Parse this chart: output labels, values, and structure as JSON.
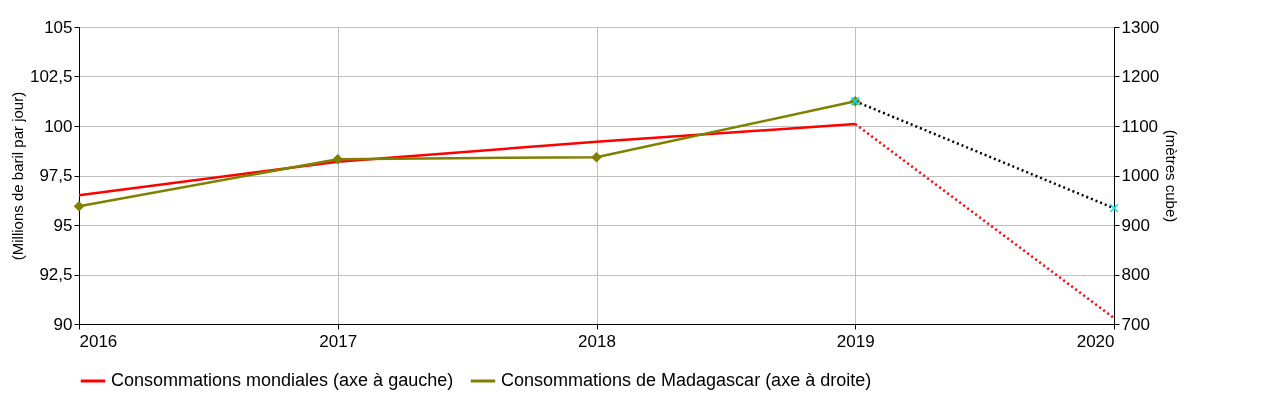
{
  "chart_data": {
    "type": "line",
    "xlabel": null,
    "ylabel": "(Millions de baril par jour)",
    "y2label": "(mètres cube)",
    "x": [
      2016,
      2017,
      2018,
      2019,
      2020
    ],
    "xlim": [
      2016,
      2020
    ],
    "xticks": [
      2016,
      2017,
      2018,
      2019,
      2020
    ],
    "ylim": [
      90,
      105
    ],
    "yticks": [
      90,
      {
        "value": 92.5,
        "label": "92,5"
      },
      95,
      {
        "value": 97.5,
        "label": "97,5"
      },
      100,
      {
        "value": 102.5,
        "label": "102,5"
      },
      105
    ],
    "y2lim": [
      700,
      1300
    ],
    "y2ticks": [
      700,
      800,
      900,
      1000,
      1100,
      1200,
      1300
    ],
    "grid": true,
    "legend": "bottom",
    "series": [
      {
        "name": "Consommations mondiales (axe à gauche)",
        "color": "#ff0000",
        "marker": "none",
        "line_style": "solid",
        "values": [
          96.5,
          98.2,
          99.2,
          100.1,
          null
        ]
      },
      {
        "name": "Consommations de Madagascar (axe à droite)",
        "color": "#808000",
        "marker": "diamond",
        "line_style": "solid",
        "axis": "y2",
        "values": [
          938,
          1033,
          1037,
          1150,
          null
        ]
      },
      {
        "color": "#ff0000",
        "marker": "none",
        "line_style": "dotted",
        "values": [
          null,
          null,
          null,
          100.1,
          90.3
        ]
      },
      {
        "color": "#000000",
        "marker": "none",
        "line_style": "dotted",
        "axis": "y2",
        "values": [
          null,
          null,
          null,
          1150,
          934
        ]
      },
      {
        "type": "scatter",
        "color": "#00e5ee",
        "marker": "cross",
        "axis": "y2",
        "values": [
          null,
          null,
          null,
          1150,
          934
        ]
      }
    ]
  }
}
